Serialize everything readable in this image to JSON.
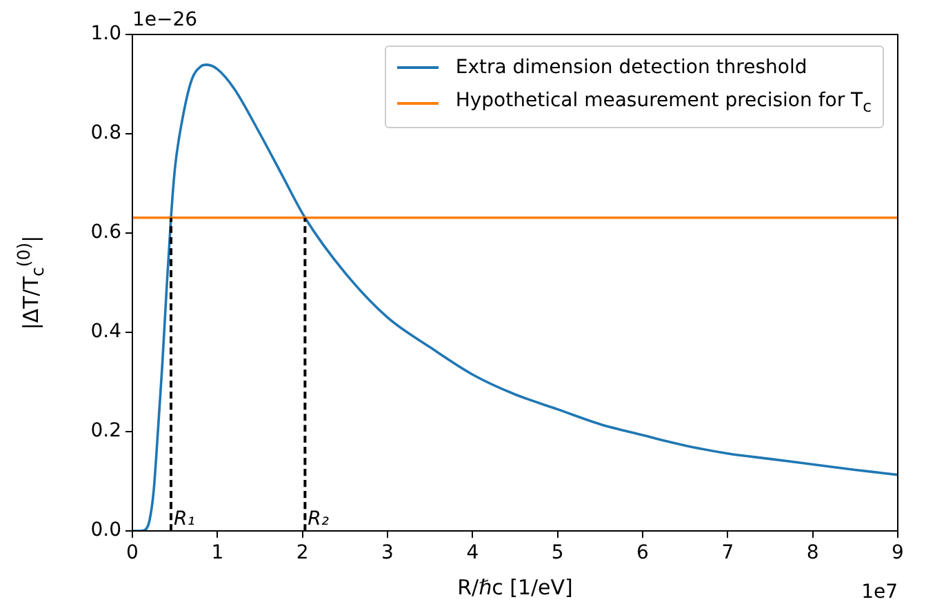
{
  "chart_data": {
    "type": "line",
    "xlabel": "R/ℏc [1/eV]",
    "ylabel": "|ΔT/T$_{c}$$^{(0)}$|",
    "xlim": [
      0,
      9
    ],
    "xticks": [
      0,
      1,
      2,
      3,
      4,
      5,
      6,
      7,
      8,
      9
    ],
    "ylim": [
      0,
      1
    ],
    "yticks": [
      {
        "value": 0,
        "label": "0.0"
      },
      0.2,
      0.4,
      0.6,
      0.8,
      {
        "value": 1,
        "label": "1.0"
      }
    ],
    "series": [
      {
        "name": "Extra dimension detection threshold",
        "color": "#1f77b4",
        "x": [
          0,
          0.1,
          0.15,
          0.2,
          0.25,
          0.3,
          0.35,
          0.4,
          0.454,
          0.5,
          0.6,
          0.7,
          0.8,
          0.875,
          1.0,
          1.2,
          1.5,
          1.75,
          2.03,
          2.5,
          3,
          3.5,
          4,
          4.5,
          5,
          5.5,
          6,
          6.5,
          7,
          7.5,
          8,
          8.5,
          9
        ],
        "values": [
          0,
          0,
          0.002,
          0.02,
          0.08,
          0.2,
          0.33,
          0.48,
          0.631,
          0.73,
          0.84,
          0.91,
          0.935,
          0.939,
          0.93,
          0.89,
          0.8,
          0.72,
          0.631,
          0.52,
          0.43,
          0.37,
          0.315,
          0.275,
          0.245,
          0.215,
          0.193,
          0.172,
          0.156,
          0.145,
          0.134,
          0.123,
          0.113
        ]
      },
      {
        "name": "Hypothetical measurement precision for T$_{c}$",
        "color": "#ff7f0e",
        "x": [
          0,
          9
        ],
        "values": [
          0.631,
          0.631
        ]
      },
      {
        "color": "#000000",
        "line_style": "dashed",
        "x": [
          0.454,
          0.454
        ],
        "values": [
          0,
          0.631
        ]
      },
      {
        "color": "#000000",
        "line_style": "dashed",
        "x": [
          2.03,
          2.03
        ],
        "values": [
          0,
          0.631
        ]
      }
    ],
    "annotations": [
      "1e−26",
      "1e7",
      {
        "text": "R₁",
        "x": 0.454,
        "y": 0
      },
      {
        "text": "R₂",
        "x": 2.03,
        "y": 0
      }
    ],
    "grid": false,
    "legend": "top right",
    "marker": "none",
    "line_style": "solid"
  }
}
